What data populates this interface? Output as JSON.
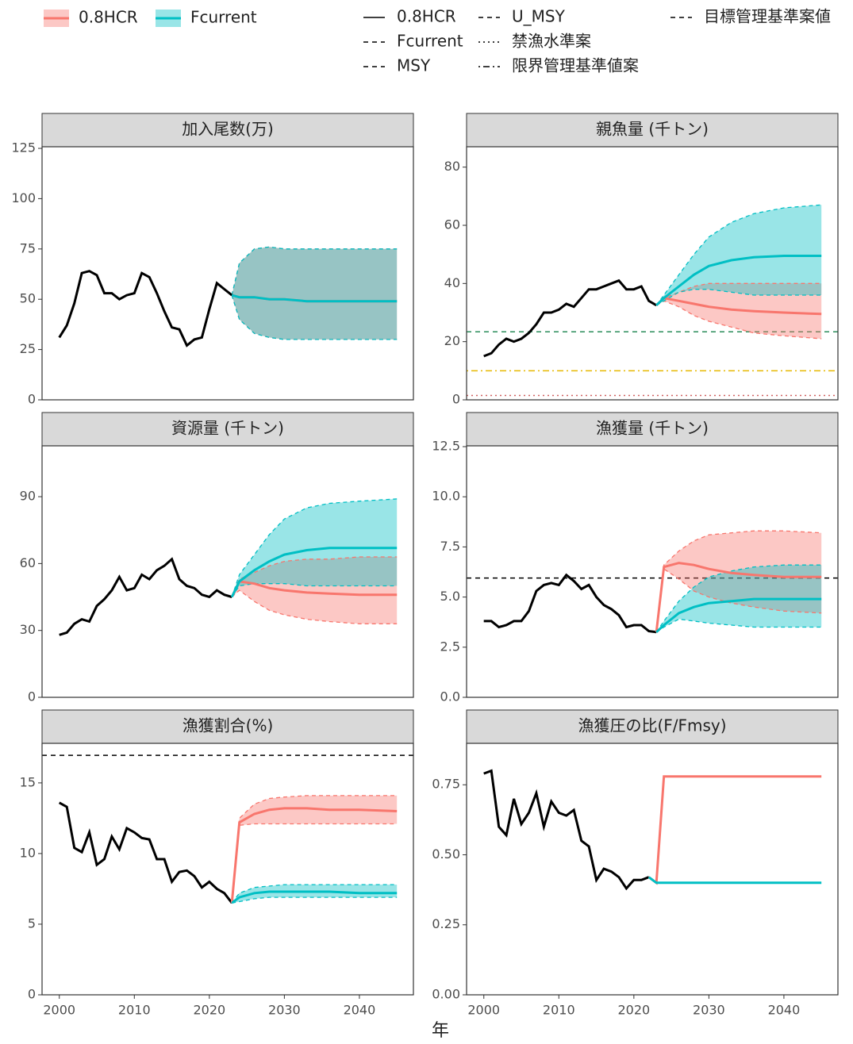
{
  "legend_lines": [
    {
      "label": "0.8HCR",
      "dash": "solid"
    },
    {
      "label": "Fcurrent",
      "dash": "dashed"
    },
    {
      "label": "MSY",
      "dash": "dashed"
    },
    {
      "label": "U_MSY",
      "dash": "dashed"
    },
    {
      "label": "禁漁水準案",
      "dash": "dotted"
    },
    {
      "label": "限界管理基準値案",
      "dash": "dotdash"
    },
    {
      "label": "目標管理基準案値",
      "dash": "dashed"
    }
  ],
  "xlabel": "年",
  "chart_data": [
    {
      "type": "line",
      "title": "加入尾数(万)",
      "xlim": [
        1997.7,
        2047.2
      ],
      "ylim": [
        0,
        125.8
      ],
      "yticks": [
        0,
        25,
        50,
        75,
        100,
        125
      ],
      "history": {
        "color": "#000000",
        "x": [
          2000,
          2001,
          2002,
          2003,
          2004,
          2005,
          2006,
          2007,
          2008,
          2009,
          2010,
          2011,
          2012,
          2013,
          2014,
          2015,
          2016,
          2017,
          2018,
          2019,
          2020,
          2021,
          2022,
          2023
        ],
        "values": [
          31,
          37,
          48,
          63,
          64,
          62,
          53,
          53,
          50,
          52,
          53,
          63,
          61,
          53,
          44,
          36,
          35,
          27,
          30,
          31,
          45,
          58,
          55,
          52
        ]
      },
      "series": [
        {
          "name": "0.8HCR",
          "color": "#F8766D",
          "x": [
            2023,
            2024,
            2026,
            2028,
            2030,
            2033,
            2036,
            2040,
            2045
          ],
          "values": [
            52,
            51,
            51,
            50,
            50,
            49,
            49,
            49,
            49
          ],
          "lower": [
            52,
            40,
            33,
            31,
            30,
            30,
            30,
            30,
            30
          ],
          "upper": [
            52,
            68,
            75,
            76,
            75,
            75,
            75,
            75,
            75
          ]
        },
        {
          "name": "Fcurrent",
          "color": "#00BFC4",
          "x": [
            2023,
            2024,
            2026,
            2028,
            2030,
            2033,
            2036,
            2040,
            2045
          ],
          "values": [
            52,
            51,
            51,
            50,
            50,
            49,
            49,
            49,
            49
          ],
          "lower": [
            52,
            40,
            33,
            31,
            30,
            30,
            30,
            30,
            30
          ],
          "upper": [
            52,
            68,
            75,
            76,
            75,
            75,
            75,
            75,
            75
          ]
        }
      ],
      "hlines": []
    },
    {
      "type": "line",
      "title": "親魚量 (千トン)",
      "xlim": [
        1997.7,
        2047.2
      ],
      "ylim": [
        0,
        87
      ],
      "yticks": [
        0,
        20,
        40,
        60,
        80
      ],
      "history": {
        "color": "#000000",
        "x": [
          2000,
          2001,
          2002,
          2003,
          2004,
          2005,
          2006,
          2007,
          2008,
          2009,
          2010,
          2011,
          2012,
          2013,
          2014,
          2015,
          2016,
          2017,
          2018,
          2019,
          2020,
          2021,
          2022,
          2023
        ],
        "values": [
          15,
          16,
          19,
          21,
          20,
          21,
          23,
          26,
          30,
          30,
          31,
          33,
          32,
          35,
          38,
          38,
          39,
          40,
          41,
          38,
          38,
          39,
          34,
          32.5
        ]
      },
      "series": [
        {
          "name": "0.8HCR",
          "color": "#F8766D",
          "x": [
            2023,
            2024,
            2026,
            2028,
            2030,
            2033,
            2036,
            2040,
            2045
          ],
          "values": [
            32.5,
            35,
            34,
            33,
            32,
            31,
            30.5,
            30,
            29.5
          ],
          "lower": [
            32.5,
            34,
            32,
            29,
            27,
            25,
            23,
            22,
            21
          ],
          "upper": [
            32.5,
            35,
            37,
            39,
            40,
            40,
            40,
            40,
            40
          ]
        },
        {
          "name": "Fcurrent",
          "color": "#00BFC4",
          "x": [
            2023,
            2024,
            2026,
            2028,
            2030,
            2033,
            2036,
            2040,
            2045
          ],
          "values": [
            32.5,
            35,
            39,
            43,
            46,
            48,
            49,
            49.5,
            49.5
          ],
          "lower": [
            32.5,
            34,
            37,
            38,
            38,
            37,
            36,
            36,
            36
          ],
          "upper": [
            32.5,
            36,
            43,
            50,
            56,
            61,
            64,
            66,
            67
          ]
        }
      ],
      "hlines": [
        {
          "value": 23.4,
          "color": "#2a8c5a",
          "dash": "dashed"
        },
        {
          "value": 10,
          "color": "#e6b800",
          "dash": "dotdash"
        },
        {
          "value": 1.5,
          "color": "#d06060",
          "dash": "dotted"
        }
      ]
    },
    {
      "type": "line",
      "title": "資源量 (千トン)",
      "xlim": [
        1997.7,
        2047.2
      ],
      "ylim": [
        0,
        112.8
      ],
      "yticks": [
        0,
        30,
        60,
        90
      ],
      "history": {
        "color": "#000000",
        "x": [
          2000,
          2001,
          2002,
          2003,
          2004,
          2005,
          2006,
          2007,
          2008,
          2009,
          2010,
          2011,
          2012,
          2013,
          2014,
          2015,
          2016,
          2017,
          2018,
          2019,
          2020,
          2021,
          2022,
          2023
        ],
        "values": [
          28,
          29,
          33,
          35,
          34,
          41,
          44,
          48,
          54,
          48,
          49,
          55,
          53,
          57,
          59,
          62,
          53,
          50,
          49,
          46,
          45,
          48,
          46,
          45
        ]
      },
      "series": [
        {
          "name": "0.8HCR",
          "color": "#F8766D",
          "x": [
            2023,
            2024,
            2026,
            2028,
            2030,
            2033,
            2036,
            2040,
            2045
          ],
          "values": [
            45,
            52,
            51,
            49,
            48,
            47,
            46.5,
            46,
            46
          ],
          "lower": [
            45,
            48,
            43,
            39,
            37,
            35,
            34,
            33,
            33
          ],
          "upper": [
            45,
            53,
            56,
            59,
            61,
            62,
            62,
            63,
            63
          ]
        },
        {
          "name": "Fcurrent",
          "color": "#00BFC4",
          "x": [
            2023,
            2024,
            2026,
            2028,
            2030,
            2033,
            2036,
            2040,
            2045
          ],
          "values": [
            45,
            52,
            57,
            61,
            64,
            66,
            67,
            67,
            67
          ],
          "lower": [
            45,
            50,
            51,
            51,
            51,
            50,
            50,
            50,
            50
          ],
          "upper": [
            45,
            55,
            64,
            73,
            80,
            85,
            87,
            88,
            89
          ]
        }
      ],
      "hlines": []
    },
    {
      "type": "line",
      "title": "漁獲量 (千トン)",
      "xlim": [
        1997.7,
        2047.2
      ],
      "ylim": [
        0,
        12.54
      ],
      "yticks": [
        {
          "value": 0,
          "label": "0.0"
        },
        2.5,
        {
          "value": 5,
          "label": "5.0"
        },
        7.5,
        {
          "value": 10,
          "label": "10.0"
        },
        12.5
      ],
      "history": {
        "color": "#000000",
        "x": [
          2000,
          2001,
          2002,
          2003,
          2004,
          2005,
          2006,
          2007,
          2008,
          2009,
          2010,
          2011,
          2012,
          2013,
          2014,
          2015,
          2016,
          2017,
          2018,
          2019,
          2020,
          2021,
          2022,
          2023
        ],
        "values": [
          3.8,
          3.8,
          3.5,
          3.6,
          3.8,
          3.8,
          4.3,
          5.3,
          5.6,
          5.7,
          5.6,
          6.1,
          5.8,
          5.4,
          5.6,
          5.0,
          4.6,
          4.4,
          4.1,
          3.5,
          3.6,
          3.6,
          3.3,
          3.25
        ]
      },
      "series": [
        {
          "name": "0.8HCR",
          "color": "#F8766D",
          "x": [
            2023,
            2024,
            2026,
            2028,
            2030,
            2033,
            2036,
            2040,
            2045
          ],
          "values": [
            3.25,
            6.5,
            6.7,
            6.6,
            6.4,
            6.2,
            6.1,
            6.0,
            6.0
          ],
          "lower": [
            3.25,
            6.4,
            5.9,
            5.3,
            5.0,
            4.7,
            4.5,
            4.3,
            4.2
          ],
          "upper": [
            3.25,
            6.6,
            7.3,
            7.8,
            8.1,
            8.2,
            8.3,
            8.3,
            8.2
          ]
        },
        {
          "name": "Fcurrent",
          "color": "#00BFC4",
          "x": [
            2023,
            2024,
            2026,
            2028,
            2030,
            2033,
            2036,
            2040,
            2045
          ],
          "values": [
            3.25,
            3.6,
            4.2,
            4.5,
            4.7,
            4.8,
            4.9,
            4.9,
            4.9
          ],
          "lower": [
            3.25,
            3.5,
            3.9,
            3.8,
            3.7,
            3.6,
            3.5,
            3.5,
            3.5
          ],
          "upper": [
            3.25,
            3.8,
            4.8,
            5.5,
            6.0,
            6.3,
            6.5,
            6.6,
            6.6
          ]
        }
      ],
      "hlines": [
        {
          "value": 5.95,
          "color": "#000000",
          "dash": "dashed"
        }
      ]
    },
    {
      "type": "line",
      "title": "漁獲割合(%)",
      "xlim": [
        1997.7,
        2047.2
      ],
      "ylim": [
        0,
        17.8
      ],
      "yticks": [
        0,
        5,
        10,
        15
      ],
      "xticks": [
        2000,
        2010,
        2020,
        2030,
        2040
      ],
      "history": {
        "color": "#000000",
        "x": [
          2000,
          2001,
          2002,
          2003,
          2004,
          2005,
          2006,
          2007,
          2008,
          2009,
          2010,
          2011,
          2012,
          2013,
          2014,
          2015,
          2016,
          2017,
          2018,
          2019,
          2020,
          2021,
          2022,
          2023
        ],
        "values": [
          13.6,
          13.3,
          10.4,
          10.1,
          11.5,
          9.2,
          9.6,
          11.2,
          10.3,
          11.8,
          11.5,
          11.1,
          11.0,
          9.6,
          9.6,
          8.0,
          8.7,
          8.8,
          8.4,
          7.6,
          8.0,
          7.5,
          7.2,
          6.5
        ]
      },
      "series": [
        {
          "name": "0.8HCR",
          "color": "#F8766D",
          "x": [
            2023,
            2024,
            2026,
            2028,
            2030,
            2033,
            2036,
            2040,
            2045
          ],
          "values": [
            6.5,
            12.2,
            12.8,
            13.1,
            13.2,
            13.2,
            13.1,
            13.1,
            13.0
          ],
          "lower": [
            6.5,
            12.0,
            12.1,
            12.1,
            12.1,
            12.1,
            12.1,
            12.1,
            12.1
          ],
          "upper": [
            6.5,
            12.5,
            13.5,
            13.9,
            14.0,
            14.1,
            14.1,
            14.1,
            14.1
          ]
        },
        {
          "name": "Fcurrent",
          "color": "#00BFC4",
          "x": [
            2023,
            2024,
            2026,
            2028,
            2030,
            2033,
            2036,
            2040,
            2045
          ],
          "values": [
            6.5,
            6.9,
            7.2,
            7.3,
            7.3,
            7.3,
            7.3,
            7.2,
            7.2
          ],
          "lower": [
            6.5,
            6.6,
            6.8,
            6.9,
            6.9,
            6.9,
            6.9,
            6.9,
            6.9
          ],
          "upper": [
            6.5,
            7.2,
            7.6,
            7.7,
            7.8,
            7.8,
            7.8,
            7.8,
            7.8
          ]
        }
      ],
      "hlines": [
        {
          "value": 16.95,
          "color": "#000000",
          "dash": "dashed"
        }
      ]
    },
    {
      "type": "line",
      "title": "漁獲圧の比(F/Fmsy)",
      "xlim": [
        1997.7,
        2047.2
      ],
      "ylim": [
        0,
        0.898
      ],
      "yticks": [
        {
          "value": 0,
          "label": "0.00"
        },
        {
          "value": 0.25,
          "label": "0.25"
        },
        {
          "value": 0.5,
          "label": "0.50"
        },
        0.75
      ],
      "xticks": [
        2000,
        2010,
        2020,
        2030,
        2040
      ],
      "history": {
        "color": "#000000",
        "x": [
          2000,
          2001,
          2002,
          2003,
          2004,
          2005,
          2006,
          2007,
          2008,
          2009,
          2010,
          2011,
          2012,
          2013,
          2014,
          2015,
          2016,
          2017,
          2018,
          2019,
          2020,
          2021,
          2022
        ],
        "values": [
          0.79,
          0.8,
          0.6,
          0.57,
          0.7,
          0.61,
          0.65,
          0.72,
          0.6,
          0.69,
          0.65,
          0.64,
          0.66,
          0.55,
          0.53,
          0.41,
          0.45,
          0.44,
          0.42,
          0.38,
          0.41,
          0.41,
          0.42
        ]
      },
      "series": [
        {
          "name": "0.8HCR",
          "color": "#F8766D",
          "x": [
            2022,
            2023,
            2024,
            2045
          ],
          "values": [
            0.42,
            0.4,
            0.78,
            0.78
          ]
        },
        {
          "name": "Fcurrent",
          "color": "#00BFC4",
          "x": [
            2022,
            2023,
            2024,
            2045
          ],
          "values": [
            0.42,
            0.4,
            0.4,
            0.4
          ]
        }
      ],
      "hlines": []
    }
  ]
}
